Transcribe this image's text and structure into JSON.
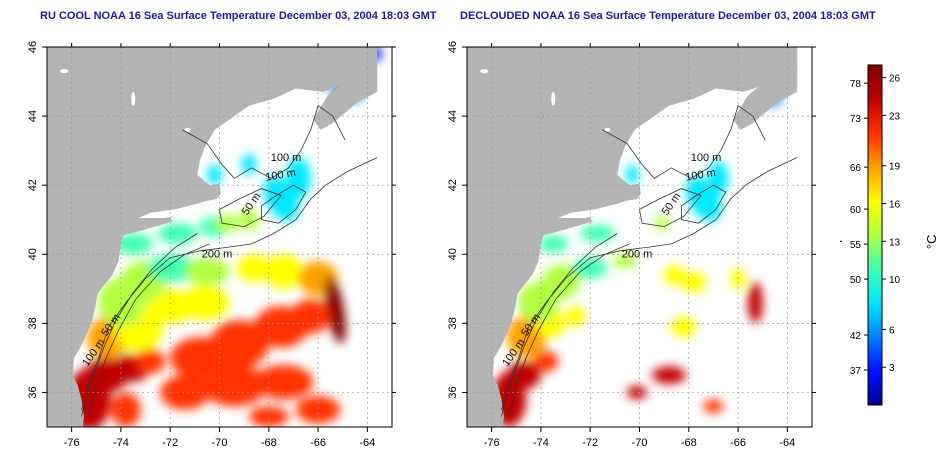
{
  "left_panel": {
    "title": "RU COOL NOAA 16 Sea Surface Temperature December 03, 2004 18:03 GMT",
    "variant": "raw"
  },
  "right_panel": {
    "title": "DECLOUDED NOAA 16 Sea Surface Temperature December 03, 2004 18:03 GMT",
    "variant": "declouded"
  },
  "axes": {
    "lon_ticks": [
      "-76",
      "-74",
      "-72",
      "-70",
      "-68",
      "-66",
      "-64"
    ],
    "lat_ticks": [
      "36",
      "38",
      "40",
      "42",
      "44",
      "46"
    ],
    "lon_range": [
      -77,
      -63
    ],
    "lat_range": [
      35,
      46
    ],
    "grid": "dotted"
  },
  "contours": {
    "labels": [
      "100 m",
      "100 m",
      "50 m",
      "200 m",
      "50 m",
      "100 m"
    ]
  },
  "colorbar": {
    "fahrenheit_label": "°F",
    "celsius_label": "°C",
    "fahrenheit_ticks": [
      "78",
      "73",
      "66",
      "60",
      "55",
      "50",
      "42",
      "37"
    ],
    "celsius_ticks": [
      "26",
      "23",
      "19",
      "16",
      "13",
      "10",
      "6",
      "3"
    ],
    "range_c": [
      0,
      27
    ],
    "colors": [
      "#00008f",
      "#0010ff",
      "#0080ff",
      "#00e8ff",
      "#40ffb0",
      "#b0ff40",
      "#ffff00",
      "#ffa000",
      "#ff3000",
      "#c00000",
      "#800000"
    ]
  },
  "colors": {
    "land": "#b4b4b4",
    "water": "#ffffff",
    "title": "#1a1aa0"
  }
}
